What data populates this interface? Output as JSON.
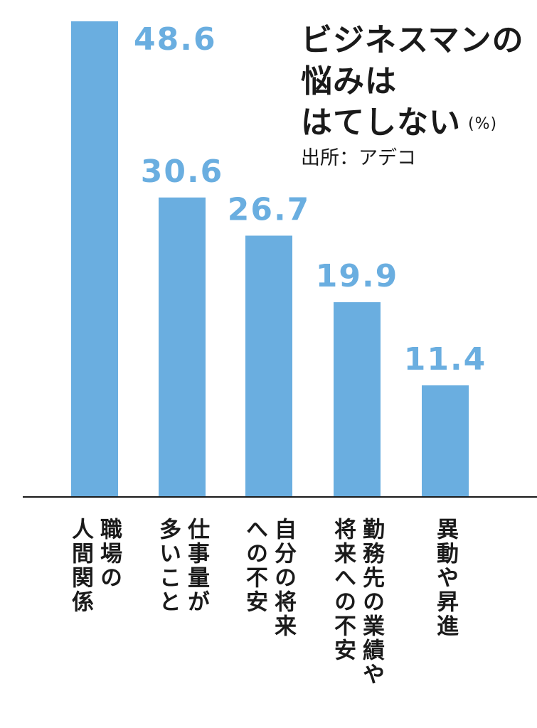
{
  "chart_data": {
    "type": "bar",
    "title_lines": [
      "ビジネスマンの",
      "悩みは",
      "はてしない"
    ],
    "unit": "(%)",
    "source": "出所：アデコ",
    "categories": [
      "職場の\n人間関係",
      "仕事量が\n多いこと",
      "自分の将来\nへの不安",
      "勤務先の業績や\n将来への不安",
      "異動や昇進"
    ],
    "values": [
      48.6,
      30.6,
      26.7,
      19.9,
      11.4
    ],
    "value_labels": [
      "48.6",
      "30.6",
      "26.7",
      "19.9",
      "11.4"
    ],
    "ylim": [
      0,
      48.6
    ],
    "bar_color": "#6aaee0",
    "label_color": "#6aaee0",
    "axis_color": "#1a1a1a",
    "grid": false
  }
}
